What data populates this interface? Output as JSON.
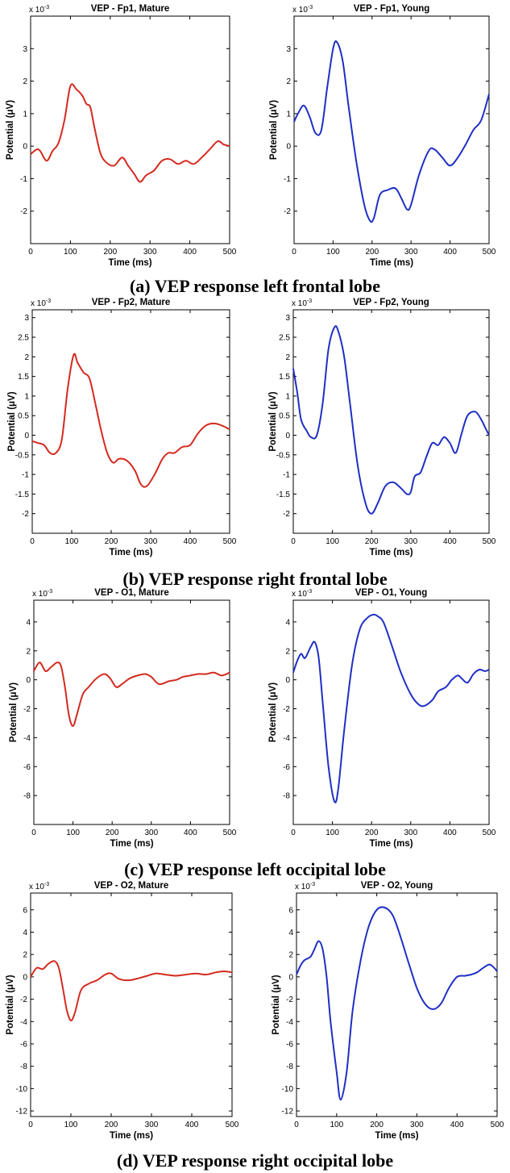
{
  "captions": [
    "(a) VEP response left frontal lobe",
    "(b) VEP response right frontal lobe",
    "(c) VEP response left occipital lobe",
    "(d) VEP response right occipital lobe"
  ],
  "colors": {
    "mature": "#d42a1f",
    "young": "#1f2fc4"
  },
  "chart_data": [
    {
      "type": "line",
      "title": "VEP - Fp1, Mature",
      "xlabel": "Time (ms)",
      "ylabel": "Potential (μV)",
      "scale_label": "x 10",
      "scale_exp": "-3",
      "series_color": "mature",
      "xlim": [
        0,
        500
      ],
      "ylim": [
        -3,
        4
      ],
      "xticks": [
        "0",
        "100",
        "200",
        "300",
        "400",
        "500"
      ],
      "yticks": [
        "-2",
        "-1",
        "0",
        "1",
        "2",
        "3"
      ],
      "series": [
        {
          "name": "Mature",
          "x": [
            0,
            20,
            40,
            55,
            70,
            85,
            100,
            115,
            130,
            140,
            150,
            160,
            175,
            190,
            210,
            230,
            245,
            260,
            275,
            290,
            310,
            330,
            350,
            370,
            390,
            410,
            430,
            450,
            470,
            485,
            500
          ],
          "y": [
            -0.25,
            -0.1,
            -0.45,
            -0.15,
            0.1,
            0.8,
            1.85,
            1.75,
            1.55,
            1.3,
            1.2,
            0.6,
            -0.2,
            -0.5,
            -0.6,
            -0.35,
            -0.6,
            -0.85,
            -1.1,
            -0.9,
            -0.75,
            -0.45,
            -0.4,
            -0.55,
            -0.45,
            -0.55,
            -0.35,
            -0.1,
            0.15,
            0.05,
            0.0
          ]
        }
      ]
    },
    {
      "type": "line",
      "title": "VEP - Fp1, Young",
      "xlabel": "Time (ms)",
      "ylabel": "Potential (μV)",
      "scale_label": "x 10",
      "scale_exp": "-3",
      "series_color": "young",
      "xlim": [
        0,
        500
      ],
      "ylim": [
        -3,
        4
      ],
      "xticks": [
        "0",
        "100",
        "200",
        "300",
        "400",
        "500"
      ],
      "yticks": [
        "-2",
        "-1",
        "0",
        "1",
        "2",
        "3"
      ],
      "series": [
        {
          "name": "Young",
          "x": [
            0,
            10,
            25,
            40,
            55,
            70,
            85,
            100,
            110,
            125,
            140,
            160,
            180,
            195,
            205,
            220,
            240,
            260,
            275,
            290,
            300,
            320,
            345,
            360,
            380,
            400,
            420,
            440,
            460,
            480,
            500
          ],
          "y": [
            0.75,
            1.0,
            1.25,
            0.9,
            0.4,
            0.5,
            1.8,
            3.0,
            3.2,
            2.6,
            1.2,
            -0.5,
            -1.8,
            -2.3,
            -2.2,
            -1.5,
            -1.35,
            -1.3,
            -1.6,
            -1.95,
            -1.8,
            -0.9,
            -0.15,
            -0.1,
            -0.35,
            -0.6,
            -0.35,
            0.05,
            0.5,
            0.8,
            1.6
          ]
        }
      ]
    },
    {
      "type": "line",
      "title": "VEP - Fp2, Mature",
      "xlabel": "Time (ms)",
      "ylabel": "Potential (μV)",
      "scale_label": "x 10",
      "scale_exp": "-3",
      "series_color": "mature",
      "xlim": [
        0,
        500
      ],
      "ylim": [
        -2.5,
        3.2
      ],
      "xticks": [
        "0",
        "100",
        "200",
        "300",
        "400",
        "500"
      ],
      "yticks": [
        "-2",
        "-1.5",
        "-1",
        "-0.5",
        "0",
        "0.5",
        "1",
        "1.5",
        "2",
        "2.5",
        "3"
      ],
      "series": [
        {
          "name": "Mature",
          "x": [
            0,
            15,
            30,
            45,
            60,
            75,
            90,
            105,
            115,
            130,
            145,
            160,
            175,
            190,
            205,
            220,
            240,
            260,
            275,
            290,
            310,
            330,
            345,
            360,
            380,
            400,
            420,
            440,
            460,
            480,
            500
          ],
          "y": [
            -0.15,
            -0.2,
            -0.25,
            -0.45,
            -0.45,
            -0.1,
            1.2,
            2.05,
            1.85,
            1.6,
            1.45,
            0.8,
            0.1,
            -0.45,
            -0.7,
            -0.6,
            -0.65,
            -0.9,
            -1.25,
            -1.3,
            -1.0,
            -0.6,
            -0.45,
            -0.45,
            -0.3,
            -0.25,
            0.05,
            0.25,
            0.3,
            0.25,
            0.15
          ]
        }
      ]
    },
    {
      "type": "line",
      "title": "VEP - Fp2, Young",
      "xlabel": "Time (ms)",
      "ylabel": "Potential (μV)",
      "scale_label": "x 10",
      "scale_exp": "-3",
      "series_color": "young",
      "xlim": [
        0,
        500
      ],
      "ylim": [
        -2.5,
        3.2
      ],
      "xticks": [
        "0",
        "100",
        "200",
        "300",
        "400",
        "500"
      ],
      "yticks": [
        "-2",
        "-1.5",
        "-1",
        "-0.5",
        "0",
        "0.5",
        "1",
        "1.5",
        "2",
        "2.5",
        "3"
      ],
      "series": [
        {
          "name": "Young",
          "x": [
            0,
            10,
            20,
            35,
            45,
            60,
            75,
            90,
            105,
            115,
            130,
            145,
            165,
            185,
            200,
            215,
            235,
            255,
            275,
            290,
            300,
            310,
            325,
            340,
            355,
            370,
            385,
            400,
            415,
            430,
            445,
            465,
            480,
            490,
            500
          ],
          "y": [
            1.7,
            1.1,
            0.4,
            0.1,
            -0.05,
            0.0,
            0.8,
            2.2,
            2.75,
            2.65,
            2.0,
            0.8,
            -0.8,
            -1.75,
            -2.0,
            -1.75,
            -1.3,
            -1.2,
            -1.35,
            -1.5,
            -1.45,
            -1.05,
            -0.95,
            -0.55,
            -0.2,
            -0.25,
            -0.05,
            -0.2,
            -0.45,
            0.05,
            0.5,
            0.6,
            0.4,
            0.2,
            0.0
          ]
        }
      ]
    },
    {
      "type": "line",
      "title": "VEP - O1, Mature",
      "xlabel": "Time (ms)",
      "ylabel": "Potential (μV)",
      "scale_label": "x 10",
      "scale_exp": "-3",
      "series_color": "mature",
      "xlim": [
        0,
        500
      ],
      "ylim": [
        -10,
        5.5
      ],
      "xticks": [
        "0",
        "100",
        "200",
        "300",
        "400",
        "500"
      ],
      "yticks": [
        "-8",
        "-6",
        "-4",
        "-2",
        "0",
        "2",
        "4"
      ],
      "series": [
        {
          "name": "Mature",
          "x": [
            0,
            15,
            30,
            45,
            60,
            70,
            80,
            90,
            100,
            110,
            125,
            140,
            160,
            180,
            195,
            210,
            225,
            245,
            265,
            285,
            300,
            320,
            345,
            365,
            380,
            400,
            420,
            440,
            460,
            480,
            500
          ],
          "y": [
            0.6,
            1.2,
            0.6,
            0.9,
            1.2,
            0.9,
            -0.6,
            -2.5,
            -3.2,
            -2.4,
            -1.0,
            -0.5,
            0.1,
            0.4,
            0.1,
            -0.5,
            -0.3,
            0.1,
            0.3,
            0.4,
            0.2,
            -0.3,
            -0.1,
            0.0,
            0.2,
            0.3,
            0.4,
            0.4,
            0.5,
            0.3,
            0.5
          ]
        }
      ]
    },
    {
      "type": "line",
      "title": "VEP - O1, Young",
      "xlabel": "Time (ms)",
      "ylabel": "Potential (μV)",
      "scale_label": "x 10",
      "scale_exp": "-3",
      "series_color": "young",
      "xlim": [
        0,
        500
      ],
      "ylim": [
        -10,
        5.5
      ],
      "xticks": [
        "0",
        "100",
        "200",
        "300",
        "400",
        "500"
      ],
      "yticks": [
        "-8",
        "-6",
        "-4",
        "-2",
        "0",
        "2",
        "4"
      ],
      "series": [
        {
          "name": "Young",
          "x": [
            0,
            10,
            20,
            30,
            45,
            55,
            65,
            75,
            90,
            105,
            115,
            130,
            150,
            170,
            190,
            205,
            215,
            230,
            250,
            275,
            300,
            320,
            335,
            355,
            370,
            390,
            405,
            420,
            430,
            445,
            460,
            475,
            490,
            500
          ],
          "y": [
            0.5,
            1.3,
            1.8,
            1.5,
            2.3,
            2.6,
            1.5,
            -1.5,
            -6.0,
            -8.4,
            -7.5,
            -3.5,
            1.0,
            3.5,
            4.3,
            4.5,
            4.4,
            4.0,
            2.5,
            0.5,
            -1.0,
            -1.7,
            -1.8,
            -1.4,
            -0.8,
            -0.5,
            0.0,
            0.3,
            0.1,
            -0.2,
            0.4,
            0.7,
            0.6,
            0.7
          ]
        }
      ]
    },
    {
      "type": "line",
      "title": "VEP - O2, Mature",
      "xlabel": "Time (ms)",
      "ylabel": "Potential (μV)",
      "scale_label": "x 10",
      "scale_exp": "-3",
      "series_color": "mature",
      "xlim": [
        0,
        500
      ],
      "ylim": [
        -12.5,
        7.5
      ],
      "xticks": [
        "0",
        "100",
        "200",
        "300",
        "400",
        "500"
      ],
      "yticks": [
        "-12",
        "-10",
        "-8",
        "-6",
        "-4",
        "-2",
        "0",
        "2",
        "4",
        "6"
      ],
      "series": [
        {
          "name": "Mature",
          "x": [
            0,
            15,
            30,
            45,
            60,
            70,
            80,
            90,
            100,
            110,
            125,
            145,
            165,
            185,
            200,
            220,
            245,
            270,
            290,
            310,
            335,
            360,
            385,
            410,
            435,
            460,
            480,
            500
          ],
          "y": [
            0.0,
            0.8,
            0.7,
            1.2,
            1.4,
            0.8,
            -1.0,
            -3.0,
            -3.9,
            -3.2,
            -1.2,
            -0.6,
            -0.3,
            0.2,
            0.3,
            -0.2,
            -0.3,
            -0.1,
            0.1,
            0.3,
            0.2,
            0.1,
            0.2,
            0.3,
            0.2,
            0.4,
            0.5,
            0.4
          ]
        }
      ]
    },
    {
      "type": "line",
      "title": "VEP - O2, Young",
      "xlabel": "Time (ms)",
      "ylabel": "Potential (μV)",
      "scale_label": "x 10",
      "scale_exp": "-3",
      "series_color": "young",
      "xlim": [
        0,
        500
      ],
      "ylim": [
        -12.5,
        7.5
      ],
      "xticks": [
        "0",
        "100",
        "200",
        "300",
        "400",
        "500"
      ],
      "yticks": [
        "-12",
        "-10",
        "-8",
        "-6",
        "-4",
        "-2",
        "0",
        "2",
        "4",
        "6"
      ],
      "series": [
        {
          "name": "Young",
          "x": [
            0,
            10,
            20,
            35,
            45,
            55,
            65,
            75,
            85,
            100,
            110,
            125,
            140,
            160,
            180,
            200,
            220,
            240,
            260,
            280,
            300,
            320,
            340,
            360,
            380,
            400,
            420,
            435,
            450,
            465,
            480,
            490,
            500
          ],
          "y": [
            0.2,
            1.0,
            1.5,
            1.8,
            2.5,
            3.2,
            2.5,
            0.0,
            -4.0,
            -8.5,
            -11.0,
            -8.5,
            -3.0,
            1.5,
            4.5,
            6.0,
            6.2,
            5.5,
            3.5,
            1.2,
            -1.0,
            -2.4,
            -2.9,
            -2.4,
            -1.0,
            0.0,
            0.1,
            0.2,
            0.4,
            0.8,
            1.1,
            0.9,
            0.5
          ]
        }
      ]
    }
  ]
}
